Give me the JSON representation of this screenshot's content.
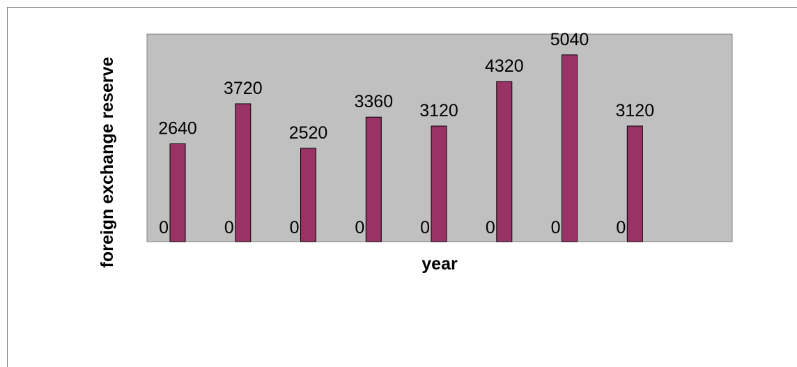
{
  "chart_data": {
    "type": "bar",
    "title": "",
    "xlabel": "year",
    "ylabel": "foreign exchange reserve",
    "series": [
      {
        "values": [
          0,
          0,
          0,
          0,
          0,
          0,
          0,
          0
        ]
      },
      {
        "values": [
          2640,
          3720,
          2520,
          3360,
          3120,
          4320,
          5040,
          3120
        ]
      }
    ],
    "ylim": [
      0,
      5600
    ],
    "grid": false,
    "legend": "none",
    "colors": {
      "plot_background": "#c0c0c0",
      "bar_fill": "#993366",
      "bar_stroke": "#000000"
    }
  }
}
